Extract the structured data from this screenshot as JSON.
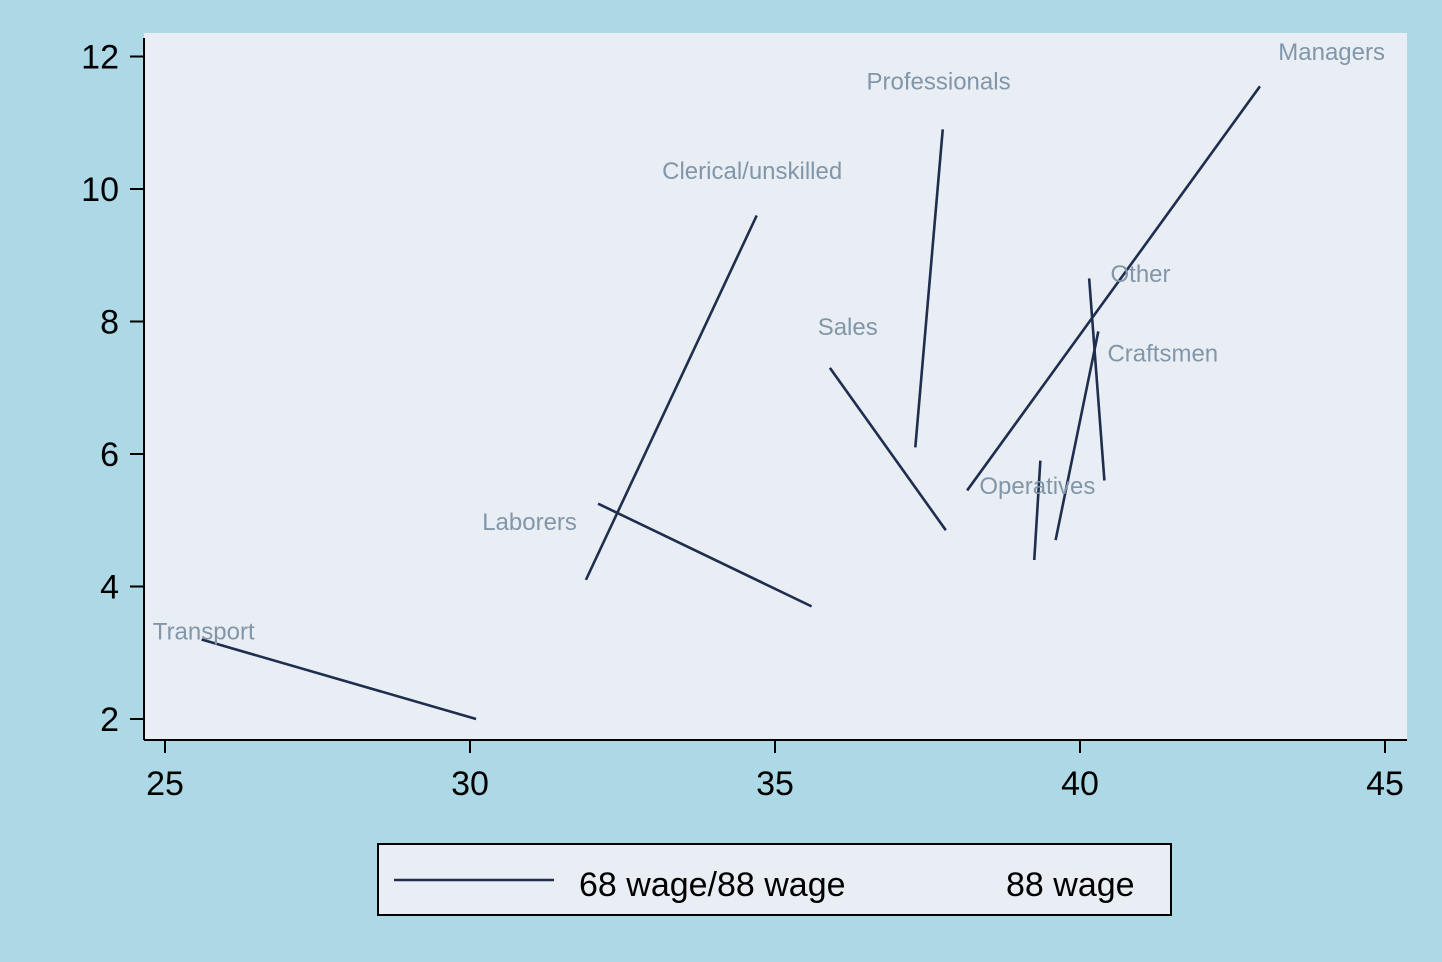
{
  "chart_data": {
    "type": "line",
    "title": "",
    "xlabel": "",
    "ylabel": "",
    "xlim": [
      24.7,
      45.3
    ],
    "ylim": [
      1.7,
      12.5
    ],
    "x_ticks": [
      "25",
      "30",
      "35",
      "40",
      "45"
    ],
    "y_ticks": [
      "2",
      "4",
      "6",
      "8",
      "10",
      "12"
    ],
    "grid": false,
    "legend_position": "bottom",
    "legend": [
      "68 wage/88 wage",
      "88 wage"
    ],
    "line_color": "#1f2d4e",
    "label_color": "#8296aa",
    "series": [
      {
        "label": "68 wage/88 wage",
        "segments": [
          {
            "label": "Transport",
            "x1": 25.6,
            "y1": 3.2,
            "x2": 30.1,
            "y2": 2.0
          },
          {
            "label": "Laborers",
            "x1": 32.1,
            "y1": 5.25,
            "x2": 35.6,
            "y2": 3.7
          },
          {
            "label": "Clerical/unskilled",
            "x1": 31.9,
            "y1": 4.1,
            "x2": 34.7,
            "y2": 9.6
          },
          {
            "label": "Sales",
            "x1": 35.9,
            "y1": 7.3,
            "x2": 37.8,
            "y2": 4.85
          },
          {
            "label": "Professionals",
            "x1": 37.3,
            "y1": 6.1,
            "x2": 37.75,
            "y2": 10.9
          },
          {
            "label": "Managers",
            "x1": 38.15,
            "y1": 5.45,
            "x2": 42.95,
            "y2": 11.55
          },
          {
            "label": "Operatives",
            "x1": 39.25,
            "y1": 4.4,
            "x2": 39.35,
            "y2": 5.9
          },
          {
            "label": "Other",
            "x1": 40.15,
            "y1": 8.65,
            "x2": 40.4,
            "y2": 5.6
          },
          {
            "label": "Craftsmen",
            "x1": 39.6,
            "y1": 4.7,
            "x2": 40.3,
            "y2": 7.85
          }
        ]
      },
      {
        "label": "88 wage",
        "segments": []
      }
    ],
    "labels": [
      {
        "text": "Managers",
        "x": 43.25,
        "y": 11.95
      },
      {
        "text": "Professionals",
        "x": 36.5,
        "y": 11.5
      },
      {
        "text": "Clerical/unskilled",
        "x": 33.15,
        "y": 10.15
      },
      {
        "text": "Other",
        "x": 40.5,
        "y": 8.6
      },
      {
        "text": "Sales",
        "x": 35.7,
        "y": 7.8
      },
      {
        "text": "Craftsmen",
        "x": 40.45,
        "y": 7.4
      },
      {
        "text": "Operatives",
        "x": 38.35,
        "y": 5.4
      },
      {
        "text": "Laborers",
        "x": 30.2,
        "y": 4.85
      },
      {
        "text": "Transport",
        "x": 24.8,
        "y": 3.2
      }
    ]
  }
}
